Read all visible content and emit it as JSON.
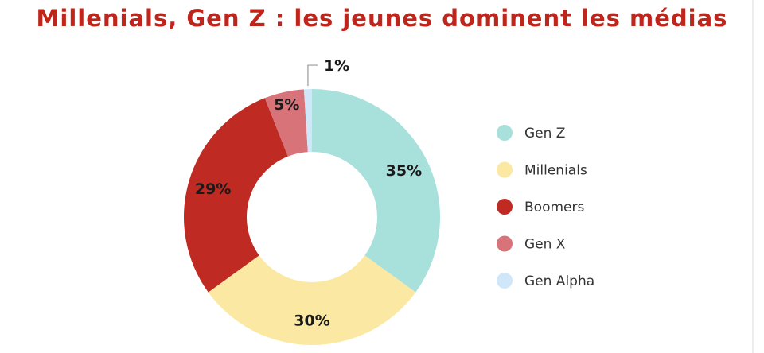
{
  "page": {
    "title": "Millenials, Gen Z : les jeunes dominent les médias"
  },
  "colors": {
    "title": "#c0251b",
    "label_text": "#1a1a1a",
    "leader_line": "#9a9a9a"
  },
  "chart_data": {
    "type": "pie",
    "donut": true,
    "title": "Millenials, Gen Z : les jeunes dominent les médias",
    "slices": [
      {
        "name": "Gen Z",
        "value": 35,
        "label": "35%",
        "color": "#a8e0db"
      },
      {
        "name": "Millenials",
        "value": 30,
        "label": "30%",
        "color": "#fbe8a2"
      },
      {
        "name": "Boomers",
        "value": 29,
        "label": "29%",
        "color": "#bf2a22"
      },
      {
        "name": "Gen X",
        "value": 5,
        "label": "5%",
        "color": "#d9737a"
      },
      {
        "name": "Gen Alpha",
        "value": 1,
        "label": "1%",
        "color": "#cfe7f8"
      }
    ],
    "legend": {
      "position": "right",
      "order": [
        "Gen Z",
        "Millenials",
        "Boomers",
        "Gen X",
        "Gen Alpha"
      ]
    }
  }
}
